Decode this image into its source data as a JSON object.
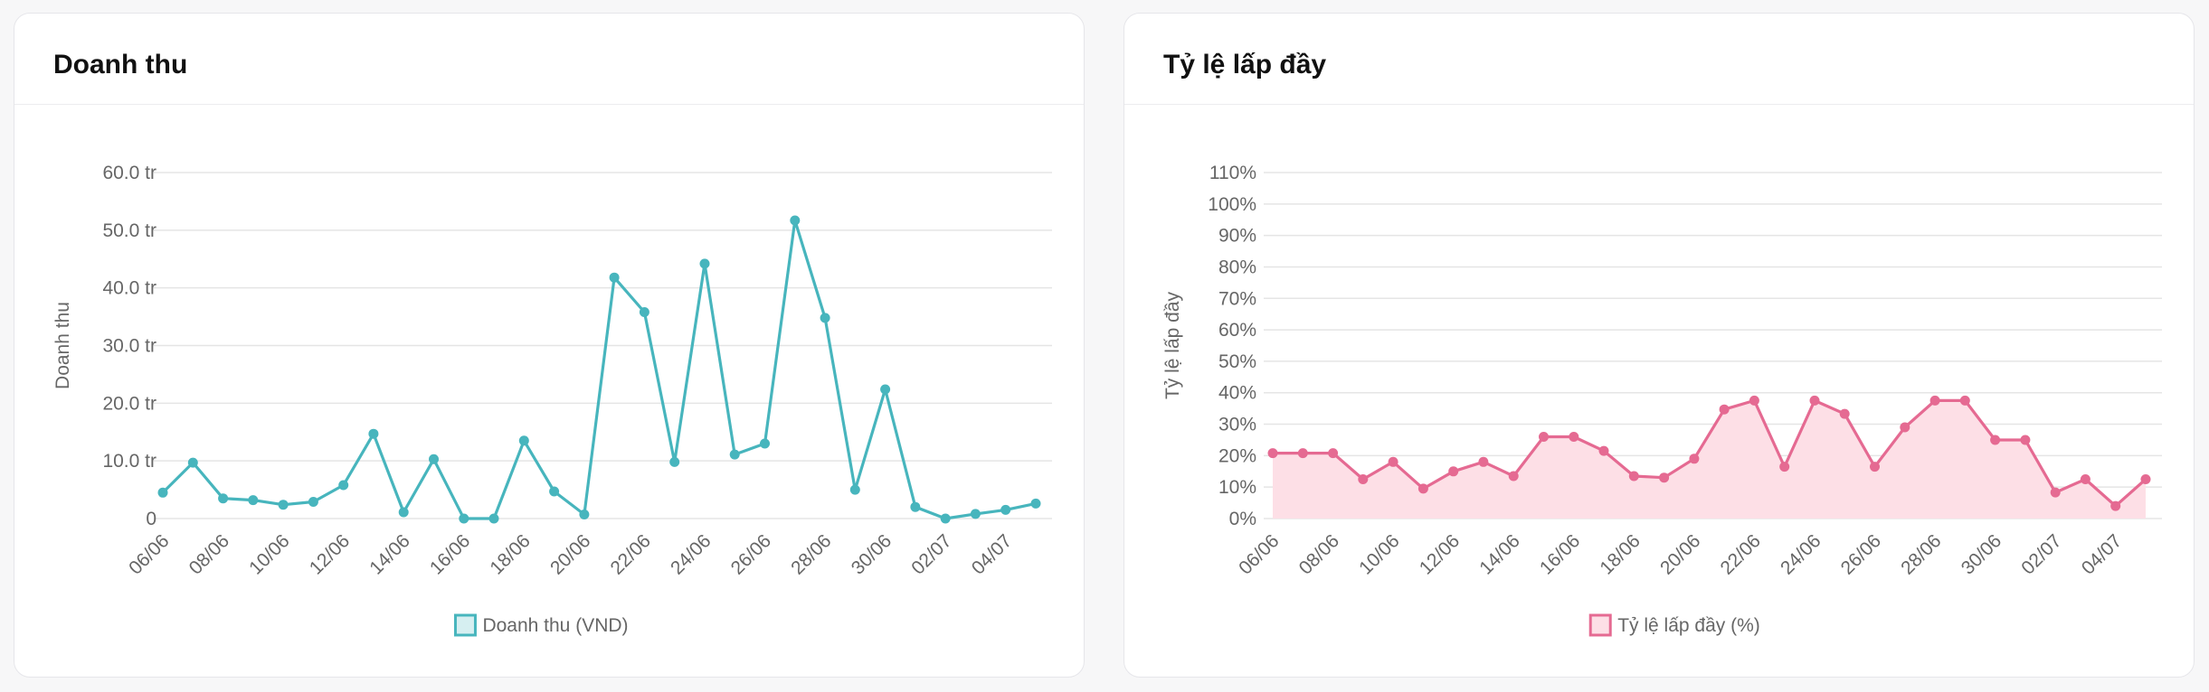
{
  "cards": [
    {
      "title": "Doanh thu"
    },
    {
      "title": "Tỷ lệ lấp đầy"
    }
  ],
  "chart_data": [
    {
      "type": "line",
      "title": "Doanh thu",
      "ylabel": "Doanh thu",
      "xlabel": "",
      "ylim": [
        0,
        60
      ],
      "yticks": [
        0,
        10,
        20,
        30,
        40,
        50,
        60
      ],
      "ytick_labels": [
        "0",
        "10.0 tr",
        "20.0 tr",
        "30.0 tr",
        "40.0 tr",
        "50.0 tr",
        "60.0 tr"
      ],
      "x": [
        "06/06",
        "07/06",
        "08/06",
        "09/06",
        "10/06",
        "11/06",
        "12/06",
        "13/06",
        "14/06",
        "15/06",
        "16/06",
        "17/06",
        "18/06",
        "19/06",
        "20/06",
        "21/06",
        "22/06",
        "23/06",
        "24/06",
        "25/06",
        "26/06",
        "27/06",
        "28/06",
        "29/06",
        "30/06",
        "01/07",
        "02/07",
        "03/07",
        "04/07",
        "05/07"
      ],
      "xtick_labels": [
        "06/06",
        "08/06",
        "10/06",
        "12/06",
        "14/06",
        "16/06",
        "18/06",
        "20/06",
        "22/06",
        "24/06",
        "26/06",
        "28/06",
        "30/06",
        "02/07",
        "04/07"
      ],
      "series": [
        {
          "name": "Doanh thu (VND)",
          "values": [
            4.5,
            9.7,
            3.5,
            3.2,
            2.4,
            2.9,
            5.8,
            14.7,
            1.1,
            10.3,
            0,
            0,
            13.5,
            4.7,
            0.7,
            41.8,
            35.8,
            9.8,
            44.2,
            11.1,
            13.0,
            51.7,
            34.8,
            5.0,
            22.4,
            2.0,
            0,
            0.8,
            1.5,
            2.6
          ]
        }
      ],
      "colors": {
        "line": "#47b5bd",
        "fill": "#d6eff1"
      },
      "grid": true,
      "legend": "bottom"
    },
    {
      "type": "area",
      "title": "Tỷ lệ lấp đầy",
      "ylabel": "Tỷ lệ lấp đầy",
      "xlabel": "",
      "ylim": [
        0,
        110
      ],
      "yticks": [
        0,
        10,
        20,
        30,
        40,
        50,
        60,
        70,
        80,
        90,
        100,
        110
      ],
      "ytick_labels": [
        "0%",
        "10%",
        "20%",
        "30%",
        "40%",
        "50%",
        "60%",
        "70%",
        "80%",
        "90%",
        "100%",
        "110%"
      ],
      "x": [
        "06/06",
        "07/06",
        "08/06",
        "09/06",
        "10/06",
        "11/06",
        "12/06",
        "13/06",
        "14/06",
        "15/06",
        "16/06",
        "17/06",
        "18/06",
        "19/06",
        "20/06",
        "21/06",
        "22/06",
        "23/06",
        "24/06",
        "25/06",
        "26/06",
        "27/06",
        "28/06",
        "29/06",
        "30/06",
        "01/07",
        "02/07",
        "03/07",
        "04/07",
        "05/07"
      ],
      "xtick_labels": [
        "06/06",
        "08/06",
        "10/06",
        "12/06",
        "14/06",
        "16/06",
        "18/06",
        "20/06",
        "22/06",
        "24/06",
        "26/06",
        "28/06",
        "30/06",
        "02/07",
        "04/07"
      ],
      "series": [
        {
          "name": "Tỷ lệ lấp đầy (%)",
          "values": [
            20.8,
            20.8,
            20.8,
            12.5,
            18.0,
            9.5,
            15.0,
            18.0,
            13.5,
            26.0,
            26.0,
            21.5,
            13.5,
            13.0,
            19.0,
            34.7,
            37.5,
            16.5,
            37.5,
            33.3,
            16.5,
            29.0,
            37.5,
            37.5,
            25.0,
            25.0,
            8.3,
            12.5,
            4.0,
            12.5
          ]
        }
      ],
      "colors": {
        "line": "#e56a92",
        "fill": "#fddfe6"
      },
      "grid": true,
      "legend": "bottom"
    }
  ]
}
